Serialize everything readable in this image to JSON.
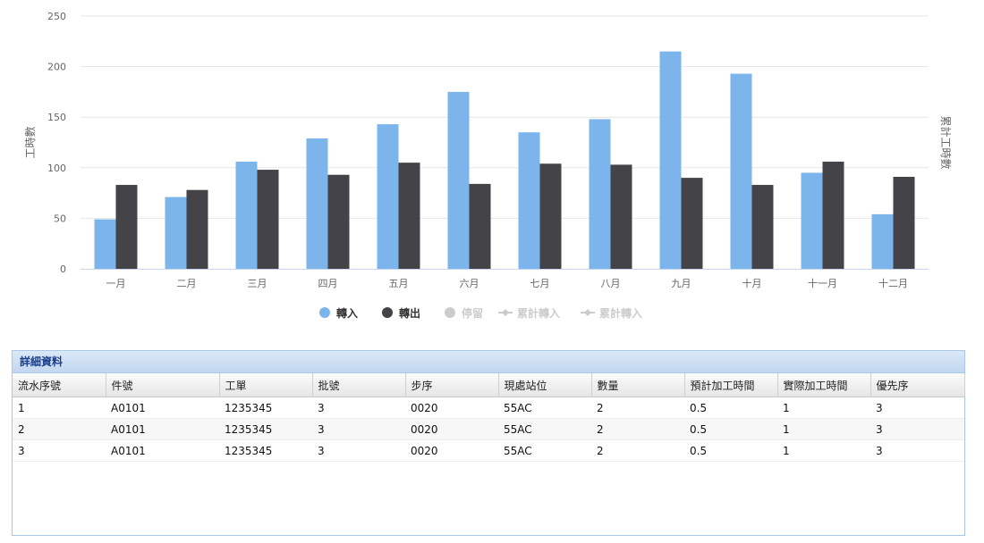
{
  "chart_data": {
    "type": "bar",
    "categories": [
      "一月",
      "二月",
      "三月",
      "四月",
      "五月",
      "六月",
      "七月",
      "八月",
      "九月",
      "十月",
      "十一月",
      "十二月"
    ],
    "series": [
      {
        "name": "轉入",
        "color": "#7cb5ec",
        "values": [
          49,
          71,
          106,
          129,
          143,
          175,
          135,
          148,
          215,
          193,
          95,
          54
        ]
      },
      {
        "name": "轉出",
        "color": "#434348",
        "values": [
          83,
          78,
          98,
          93,
          105,
          84,
          104,
          103,
          90,
          83,
          106,
          91
        ]
      }
    ],
    "legend": [
      {
        "name": "轉入",
        "symbol": "circle",
        "color": "#7cb5ec",
        "active": true
      },
      {
        "name": "轉出",
        "symbol": "circle",
        "color": "#434348",
        "active": true
      },
      {
        "name": "停留",
        "symbol": "circle",
        "color": "#cccccc",
        "active": false
      },
      {
        "name": "累計轉入",
        "symbol": "line-diamond",
        "color": "#cccccc",
        "active": false
      },
      {
        "name": "累計轉入",
        "symbol": "line-diamond",
        "color": "#cccccc",
        "active": false
      }
    ],
    "ylabel": "工時數",
    "y2label": "累計工時數",
    "ylim": [
      0,
      250
    ],
    "yticks": [
      0,
      50,
      100,
      150,
      200,
      250
    ],
    "grid": true,
    "legend_position": "bottom-center"
  },
  "details": {
    "title": "詳細資料",
    "columns": [
      "流水序號",
      "件號",
      "工單",
      "批號",
      "步序",
      "現處站位",
      "數量",
      "預計加工時間",
      "實際加工時間",
      "優先序"
    ],
    "rows": [
      [
        "1",
        "A0101",
        "1235345",
        "3",
        "0020",
        "55AC",
        "2",
        "0.5",
        "1",
        "3"
      ],
      [
        "2",
        "A0101",
        "1235345",
        "3",
        "0020",
        "55AC",
        "2",
        "0.5",
        "1",
        "3"
      ],
      [
        "3",
        "A0101",
        "1235345",
        "3",
        "0020",
        "55AC",
        "2",
        "0.5",
        "1",
        "3"
      ]
    ]
  }
}
